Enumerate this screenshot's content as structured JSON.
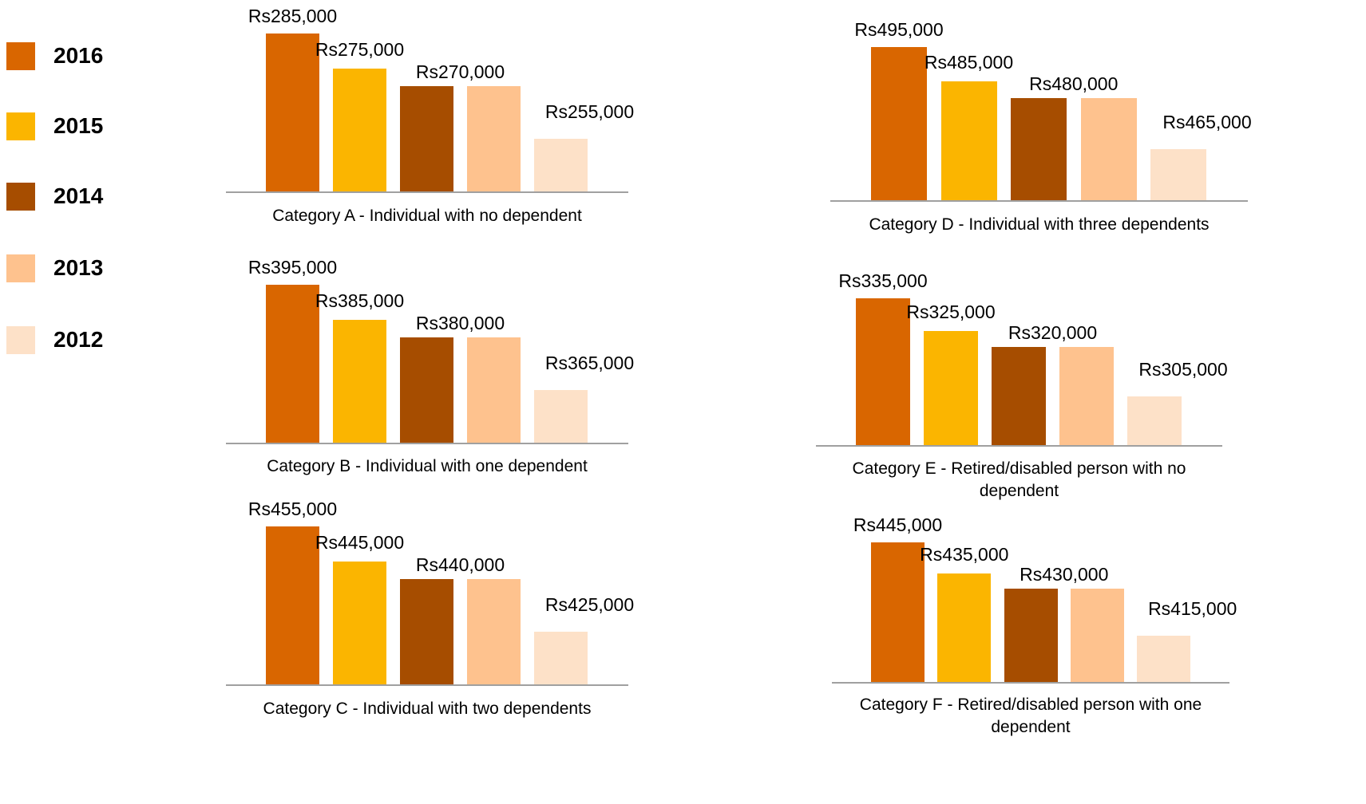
{
  "series": [
    {
      "name": "2016",
      "color": "#d96600"
    },
    {
      "name": "2015",
      "color": "#fbb500"
    },
    {
      "name": "2014",
      "color": "#a64d00"
    },
    {
      "name": "2013",
      "color": "#fec28e"
    },
    {
      "name": "2012",
      "color": "#fde1c8"
    }
  ],
  "chart_data": [
    {
      "type": "bar",
      "title": "Category A - Individual with no dependent",
      "values": [
        285000,
        275000,
        270000,
        270000,
        255000
      ],
      "value_labels": [
        "Rs285,000",
        "Rs275,000",
        "Rs270,000",
        null,
        "Rs255,000"
      ],
      "ylim": [
        240000,
        290000
      ]
    },
    {
      "type": "bar",
      "title": "Category B - Individual with one dependent",
      "values": [
        395000,
        385000,
        380000,
        380000,
        365000
      ],
      "value_labels": [
        "Rs395,000",
        "Rs385,000",
        "Rs380,000",
        null,
        "Rs365,000"
      ],
      "ylim": [
        350000,
        400000
      ]
    },
    {
      "type": "bar",
      "title": "Category C - Individual with two dependents",
      "values": [
        455000,
        445000,
        440000,
        440000,
        425000
      ],
      "value_labels": [
        "Rs455,000",
        "Rs445,000",
        "Rs440,000",
        null,
        "Rs425,000"
      ],
      "ylim": [
        410000,
        460000
      ]
    },
    {
      "type": "bar",
      "title": "Category D - Individual with three dependents",
      "values": [
        495000,
        485000,
        480000,
        480000,
        465000
      ],
      "value_labels": [
        "Rs495,000",
        "Rs485,000",
        "Rs480,000",
        null,
        "Rs465,000"
      ],
      "ylim": [
        450000,
        500000
      ]
    },
    {
      "type": "bar",
      "title": "Category E - Retired/disabled person with no dependent",
      "values": [
        335000,
        325000,
        320000,
        320000,
        305000
      ],
      "value_labels": [
        "Rs335,000",
        "Rs325,000",
        "Rs320,000",
        null,
        "Rs305,000"
      ],
      "ylim": [
        290000,
        340000
      ]
    },
    {
      "type": "bar",
      "title": "Category F - Retired/disabled person with one dependent",
      "values": [
        445000,
        435000,
        430000,
        430000,
        415000
      ],
      "value_labels": [
        "Rs445,000",
        "Rs435,000",
        "Rs430,000",
        null,
        "Rs415,000"
      ],
      "ylim": [
        400000,
        450000
      ]
    }
  ]
}
